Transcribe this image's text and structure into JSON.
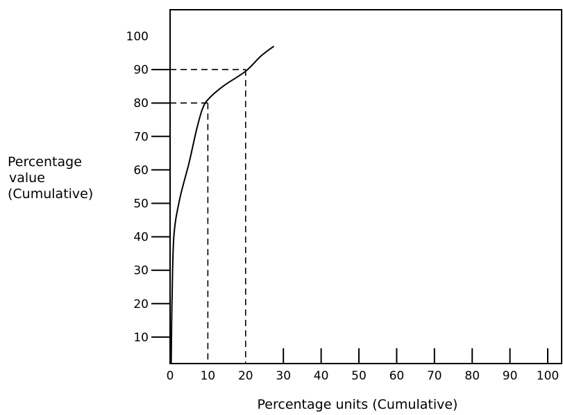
{
  "chart_data": {
    "type": "line",
    "title": "",
    "xlabel": "Percentage units (Cumulative)",
    "ylabel_lines": [
      "Percentage",
      "value",
      "(Cumulative)"
    ],
    "xlim": [
      0,
      100
    ],
    "ylim": [
      0,
      100
    ],
    "x_ticks": [
      0,
      10,
      20,
      30,
      40,
      50,
      60,
      70,
      80,
      90,
      100
    ],
    "x_tick_labels": [
      "0",
      "10",
      "20",
      "30",
      "40",
      "50",
      "60",
      "70",
      "80",
      "90",
      "100"
    ],
    "y_ticks": [
      10,
      20,
      30,
      40,
      50,
      60,
      70,
      80,
      90,
      100
    ],
    "y_tick_labels": [
      "10",
      "20",
      "30",
      "40",
      "50",
      "60",
      "70",
      "80",
      "90",
      "100"
    ],
    "grid": false,
    "series": [
      {
        "x": [
          0.3,
          0.5,
          1,
          2.5,
          5,
          7,
          8.5,
          10,
          14,
          20,
          24,
          27.5
        ],
        "y": [
          0,
          20,
          40,
          51,
          62,
          72,
          78,
          81,
          85,
          89.5,
          94,
          97
        ],
        "color": "#000000"
      }
    ],
    "reference_lines": [
      {
        "x": 10,
        "y": 80
      },
      {
        "x": 20,
        "y": 90
      }
    ]
  }
}
